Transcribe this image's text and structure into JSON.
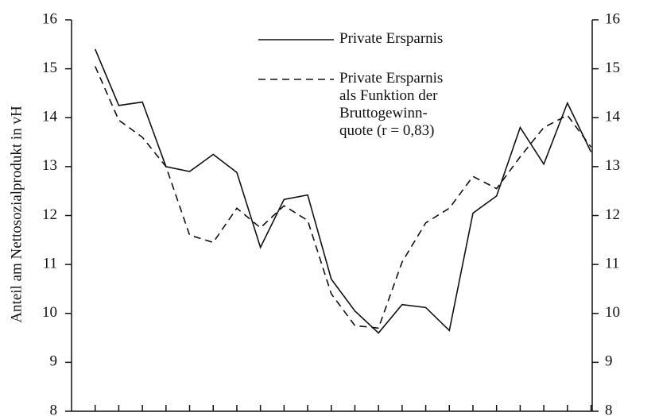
{
  "chart_data": {
    "type": "line",
    "y_label": "Anteil am Nettosozialprodukt in vH",
    "categories": [
      null,
      null,
      null,
      null,
      null,
      null,
      null,
      null,
      null,
      null,
      null,
      null,
      null,
      null,
      null,
      null,
      null,
      null,
      null,
      null,
      null,
      null
    ],
    "series": [
      {
        "name": "Private Ersparnis",
        "color": "#111111",
        "dash": "solid",
        "values": [
          15.4,
          14.25,
          14.32,
          13.0,
          12.9,
          13.25,
          12.88,
          11.35,
          12.33,
          12.42,
          10.7,
          10.05,
          9.6,
          10.18,
          10.12,
          9.65,
          12.05,
          12.4,
          13.8,
          13.05,
          14.3,
          13.3
        ]
      },
      {
        "name": "Private Ersparnis\nals Funktion der\nBruttogewinn-\nquote (r = 0,83)",
        "color": "#111111",
        "dash": "dashed",
        "values": [
          15.05,
          13.95,
          13.6,
          13.0,
          11.6,
          11.45,
          12.15,
          11.75,
          12.2,
          11.9,
          10.4,
          9.75,
          9.7,
          11.05,
          11.85,
          12.15,
          12.8,
          12.55,
          13.2,
          13.8,
          14.05,
          13.4
        ]
      }
    ],
    "ylim": [
      8,
      16
    ],
    "yticks": [
      8,
      9,
      10,
      11,
      12,
      13,
      14,
      15,
      16
    ],
    "y2lim": [
      8,
      16
    ],
    "y2ticks": [
      8,
      9,
      10,
      11,
      12,
      13,
      14,
      15,
      16
    ],
    "grid": false
  }
}
